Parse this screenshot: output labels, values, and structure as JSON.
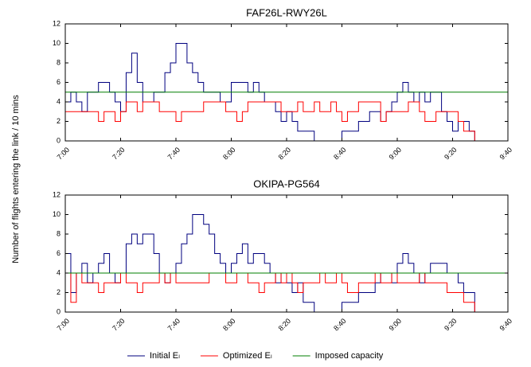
{
  "ylabel": "Number of flights entering the link / 10 mins",
  "chart_data": [
    {
      "type": "line",
      "title": "FAF26L-RWY26L",
      "step": true,
      "x": [
        0,
        2,
        4,
        6,
        8,
        10,
        12,
        14,
        16,
        18,
        20,
        22,
        24,
        26,
        28,
        30,
        32,
        34,
        36,
        38,
        40,
        42,
        44,
        46,
        48,
        50,
        52,
        54,
        56,
        58,
        60,
        62,
        64,
        66,
        68,
        70,
        72,
        74,
        76,
        78,
        80,
        82,
        84,
        86,
        88,
        90,
        92,
        94,
        96,
        98,
        100,
        102,
        104,
        106,
        108,
        110,
        112,
        114,
        116,
        118,
        120,
        122,
        124,
        126,
        128,
        130,
        132,
        134,
        136,
        138,
        140,
        142,
        144,
        146,
        148,
        150
      ],
      "xlim": [
        0,
        160
      ],
      "xticks": [
        {
          "value": 0,
          "label": "7:00"
        },
        {
          "value": 20,
          "label": "7:20"
        },
        {
          "value": 40,
          "label": "7:40"
        },
        {
          "value": 60,
          "label": "8:00"
        },
        {
          "value": 80,
          "label": "8:20"
        },
        {
          "value": 100,
          "label": "8:40"
        },
        {
          "value": 120,
          "label": "9:00"
        },
        {
          "value": 140,
          "label": "9:20"
        },
        {
          "value": 160,
          "label": "9:40"
        }
      ],
      "ylim": [
        0,
        12
      ],
      "yticks": [
        0,
        2,
        4,
        6,
        8,
        10,
        12
      ],
      "series": [
        {
          "name": "Initial Eₗ",
          "color": "#00007f",
          "values": [
            4,
            5,
            4,
            3,
            5,
            5,
            6,
            6,
            5,
            4,
            3,
            7,
            9,
            6,
            4,
            4,
            5,
            5,
            7,
            8,
            10,
            10,
            8,
            7,
            6,
            5,
            5,
            5,
            4,
            4,
            6,
            6,
            6,
            5,
            6,
            5,
            4,
            4,
            3,
            2,
            3,
            2,
            1,
            1,
            1,
            0,
            0,
            0,
            0,
            0,
            1,
            1,
            1,
            2,
            2,
            3,
            3,
            2,
            3,
            4,
            5,
            6,
            5,
            4,
            5,
            4,
            5,
            5,
            3,
            2,
            1,
            2,
            2,
            1,
            0,
            0
          ]
        },
        {
          "name": "Optimized Eₗ",
          "color": "#ff0000",
          "values": [
            3,
            3,
            3,
            3,
            3,
            3,
            2,
            3,
            3,
            2,
            3,
            4,
            4,
            3,
            4,
            4,
            4,
            3,
            3,
            3,
            2,
            3,
            3,
            3,
            3,
            4,
            4,
            4,
            4,
            3,
            3,
            2,
            3,
            4,
            4,
            4,
            4,
            4,
            4,
            3,
            3,
            3,
            4,
            3,
            3,
            4,
            3,
            3,
            4,
            3,
            2,
            3,
            3,
            4,
            4,
            4,
            4,
            2,
            3,
            3,
            3,
            3,
            4,
            4,
            3,
            2,
            2,
            3,
            3,
            3,
            3,
            2,
            1,
            1,
            0,
            0
          ]
        },
        {
          "name": "Imposed capacity",
          "color": "#007f00",
          "x": [
            0,
            160
          ],
          "values": [
            5,
            5
          ]
        }
      ]
    },
    {
      "type": "line",
      "title": "OKIPA-PG564",
      "step": true,
      "x": [
        0,
        2,
        4,
        6,
        8,
        10,
        12,
        14,
        16,
        18,
        20,
        22,
        24,
        26,
        28,
        30,
        32,
        34,
        36,
        38,
        40,
        42,
        44,
        46,
        48,
        50,
        52,
        54,
        56,
        58,
        60,
        62,
        64,
        66,
        68,
        70,
        72,
        74,
        76,
        78,
        80,
        82,
        84,
        86,
        88,
        90,
        92,
        94,
        96,
        98,
        100,
        102,
        104,
        106,
        108,
        110,
        112,
        114,
        116,
        118,
        120,
        122,
        124,
        126,
        128,
        130,
        132,
        134,
        136,
        138,
        140,
        142,
        144,
        146,
        148,
        150
      ],
      "xlim": [
        0,
        160
      ],
      "xticks": [
        {
          "value": 0,
          "label": "7:00"
        },
        {
          "value": 20,
          "label": "7:20"
        },
        {
          "value": 40,
          "label": "7:40"
        },
        {
          "value": 60,
          "label": "8:00"
        },
        {
          "value": 80,
          "label": "8:20"
        },
        {
          "value": 100,
          "label": "8:40"
        },
        {
          "value": 120,
          "label": "9:00"
        },
        {
          "value": 140,
          "label": "9:20"
        },
        {
          "value": 160,
          "label": "9:40"
        }
      ],
      "ylim": [
        0,
        12
      ],
      "yticks": [
        0,
        2,
        4,
        6,
        8,
        10,
        12
      ],
      "series": [
        {
          "color": "#00007f",
          "values": [
            6,
            2,
            4,
            5,
            3,
            4,
            5,
            6,
            4,
            3,
            4,
            7,
            8,
            7,
            8,
            8,
            6,
            4,
            3,
            4,
            5,
            7,
            8,
            10,
            10,
            9,
            8,
            6,
            5,
            4,
            5,
            6,
            7,
            5,
            6,
            6,
            5,
            4,
            3,
            4,
            3,
            2,
            3,
            1,
            1,
            0,
            0,
            0,
            0,
            0,
            1,
            1,
            1,
            2,
            2,
            2,
            3,
            4,
            4,
            3,
            5,
            6,
            5,
            4,
            3,
            4,
            5,
            5,
            5,
            4,
            4,
            3,
            2,
            2,
            0,
            0
          ]
        },
        {
          "color": "#ff0000",
          "values": [
            4,
            1,
            4,
            3,
            3,
            3,
            2,
            3,
            3,
            3,
            4,
            3,
            3,
            2,
            3,
            3,
            3,
            4,
            3,
            4,
            3,
            3,
            3,
            3,
            3,
            3,
            4,
            4,
            4,
            3,
            3,
            4,
            4,
            3,
            3,
            2,
            3,
            3,
            4,
            3,
            4,
            3,
            2,
            3,
            3,
            3,
            4,
            3,
            3,
            4,
            3,
            2,
            2,
            3,
            3,
            3,
            4,
            3,
            3,
            4,
            3,
            3,
            3,
            3,
            4,
            3,
            3,
            3,
            3,
            2,
            2,
            2,
            1,
            1,
            0,
            0
          ]
        },
        {
          "color": "#007f00",
          "x": [
            0,
            160
          ],
          "values": [
            4,
            4
          ]
        }
      ]
    }
  ]
}
